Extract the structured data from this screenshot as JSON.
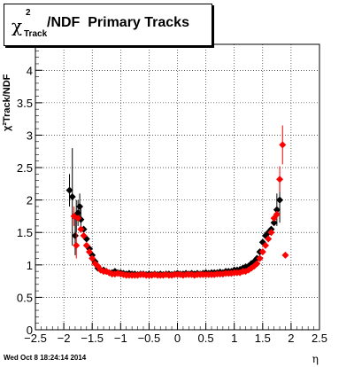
{
  "title": {
    "symbol": "χ",
    "sup": "2",
    "sub": "Track",
    "rest": "/NDF  Primary Tracks"
  },
  "axis_label_y": "χ²Track/NDF",
  "axis_label_x": "η",
  "footer": "Wed Oct  8 18:24:14 2014",
  "chart_data": {
    "type": "scatter",
    "xlim": [
      -2.5,
      2.5
    ],
    "ylim": [
      0,
      4.4
    ],
    "x_ticks": [
      "−2.5",
      "−2",
      "−1.5",
      "−1",
      "−0.5",
      "0",
      "0.5",
      "1",
      "1.5",
      "2",
      "2.5"
    ],
    "y_ticks": [
      "0",
      "0.5",
      "1",
      "1.5",
      "2",
      "2.5",
      "3",
      "3.5",
      "4"
    ],
    "grid": true,
    "series": [
      {
        "color": "#000000",
        "points": [
          [
            -1.9,
            2.15
          ],
          [
            -1.85,
            2.05
          ],
          [
            -1.8,
            1.45
          ],
          [
            -1.78,
            1.75
          ],
          [
            -1.75,
            1.8
          ],
          [
            -1.72,
            1.9
          ],
          [
            -1.7,
            1.7
          ],
          [
            -1.65,
            1.55
          ],
          [
            -1.6,
            1.4
          ],
          [
            -1.55,
            1.25
          ],
          [
            -1.5,
            1.15
          ],
          [
            -1.45,
            1.05
          ],
          [
            -1.4,
            0.95
          ],
          [
            -1.35,
            0.92
          ],
          [
            -1.3,
            0.92
          ],
          [
            -1.25,
            0.9
          ],
          [
            -1.2,
            0.88
          ],
          [
            -1.15,
            0.88
          ],
          [
            -1.1,
            0.9
          ],
          [
            -1.05,
            0.88
          ],
          [
            -1.0,
            0.88
          ],
          [
            -0.95,
            0.87
          ],
          [
            -0.9,
            0.86
          ],
          [
            -0.85,
            0.87
          ],
          [
            -0.8,
            0.86
          ],
          [
            -0.75,
            0.86
          ],
          [
            -0.7,
            0.85
          ],
          [
            -0.65,
            0.86
          ],
          [
            -0.6,
            0.86
          ],
          [
            -0.55,
            0.85
          ],
          [
            -0.5,
            0.86
          ],
          [
            -0.45,
            0.85
          ],
          [
            -0.4,
            0.86
          ],
          [
            -0.35,
            0.85
          ],
          [
            -0.3,
            0.86
          ],
          [
            -0.25,
            0.85
          ],
          [
            -0.2,
            0.86
          ],
          [
            -0.15,
            0.86
          ],
          [
            -0.1,
            0.85
          ],
          [
            -0.05,
            0.86
          ],
          [
            0.0,
            0.87
          ],
          [
            0.05,
            0.86
          ],
          [
            0.1,
            0.86
          ],
          [
            0.15,
            0.87
          ],
          [
            0.2,
            0.86
          ],
          [
            0.25,
            0.87
          ],
          [
            0.3,
            0.86
          ],
          [
            0.35,
            0.87
          ],
          [
            0.4,
            0.86
          ],
          [
            0.45,
            0.87
          ],
          [
            0.5,
            0.88
          ],
          [
            0.55,
            0.87
          ],
          [
            0.6,
            0.88
          ],
          [
            0.65,
            0.88
          ],
          [
            0.7,
            0.88
          ],
          [
            0.75,
            0.89
          ],
          [
            0.8,
            0.88
          ],
          [
            0.85,
            0.9
          ],
          [
            0.9,
            0.9
          ],
          [
            0.95,
            0.9
          ],
          [
            1.0,
            0.92
          ],
          [
            1.05,
            0.92
          ],
          [
            1.1,
            0.93
          ],
          [
            1.15,
            0.95
          ],
          [
            1.2,
            0.97
          ],
          [
            1.25,
            0.98
          ],
          [
            1.3,
            1.02
          ],
          [
            1.35,
            1.05
          ],
          [
            1.4,
            1.1
          ],
          [
            1.45,
            1.2
          ],
          [
            1.5,
            1.35
          ],
          [
            1.55,
            1.45
          ],
          [
            1.6,
            1.5
          ],
          [
            1.65,
            1.55
          ],
          [
            1.7,
            1.65
          ],
          [
            1.75,
            1.85
          ],
          [
            1.8,
            2.0
          ]
        ],
        "errors": [
          [
            -1.9,
            0.25
          ],
          [
            -1.85,
            0.75
          ],
          [
            -1.8,
            0.3
          ],
          [
            -1.78,
            0.25
          ],
          [
            -1.75,
            0.2
          ],
          [
            -1.72,
            0.2
          ],
          [
            -1.7,
            0.2
          ],
          [
            1.75,
            0.25
          ],
          [
            1.8,
            0.35
          ]
        ]
      },
      {
        "color": "#ff0000",
        "points": [
          [
            -1.82,
            1.75
          ],
          [
            -1.78,
            1.3
          ],
          [
            -1.75,
            1.72
          ],
          [
            -1.7,
            1.55
          ],
          [
            -1.65,
            1.45
          ],
          [
            -1.6,
            1.3
          ],
          [
            -1.55,
            1.2
          ],
          [
            -1.5,
            1.1
          ],
          [
            -1.45,
            1.02
          ],
          [
            -1.4,
            0.98
          ],
          [
            -1.35,
            0.92
          ],
          [
            -1.3,
            0.9
          ],
          [
            -1.25,
            0.9
          ],
          [
            -1.2,
            0.88
          ],
          [
            -1.15,
            0.86
          ],
          [
            -1.1,
            0.86
          ],
          [
            -1.05,
            0.87
          ],
          [
            -1.0,
            0.86
          ],
          [
            -0.95,
            0.85
          ],
          [
            -0.9,
            0.84
          ],
          [
            -0.85,
            0.84
          ],
          [
            -0.8,
            0.84
          ],
          [
            -0.75,
            0.84
          ],
          [
            -0.7,
            0.84
          ],
          [
            -0.65,
            0.85
          ],
          [
            -0.6,
            0.85
          ],
          [
            -0.55,
            0.84
          ],
          [
            -0.5,
            0.84
          ],
          [
            -0.45,
            0.84
          ],
          [
            -0.4,
            0.85
          ],
          [
            -0.35,
            0.84
          ],
          [
            -0.3,
            0.84
          ],
          [
            -0.25,
            0.84
          ],
          [
            -0.2,
            0.85
          ],
          [
            -0.15,
            0.84
          ],
          [
            -0.1,
            0.84
          ],
          [
            -0.05,
            0.85
          ],
          [
            0.0,
            0.85
          ],
          [
            0.05,
            0.85
          ],
          [
            0.1,
            0.84
          ],
          [
            0.15,
            0.85
          ],
          [
            0.2,
            0.85
          ],
          [
            0.25,
            0.85
          ],
          [
            0.3,
            0.84
          ],
          [
            0.35,
            0.85
          ],
          [
            0.4,
            0.85
          ],
          [
            0.45,
            0.85
          ],
          [
            0.5,
            0.85
          ],
          [
            0.55,
            0.85
          ],
          [
            0.6,
            0.85
          ],
          [
            0.65,
            0.85
          ],
          [
            0.7,
            0.86
          ],
          [
            0.75,
            0.86
          ],
          [
            0.8,
            0.86
          ],
          [
            0.85,
            0.87
          ],
          [
            0.9,
            0.87
          ],
          [
            0.95,
            0.87
          ],
          [
            1.0,
            0.88
          ],
          [
            1.05,
            0.88
          ],
          [
            1.1,
            0.88
          ],
          [
            1.15,
            0.9
          ],
          [
            1.2,
            0.9
          ],
          [
            1.25,
            0.92
          ],
          [
            1.3,
            0.95
          ],
          [
            1.35,
            0.98
          ],
          [
            1.4,
            1.02
          ],
          [
            1.45,
            1.1
          ],
          [
            1.5,
            1.2
          ],
          [
            1.55,
            1.3
          ],
          [
            1.6,
            1.4
          ],
          [
            1.65,
            1.5
          ],
          [
            1.7,
            1.72
          ],
          [
            1.75,
            1.78
          ],
          [
            1.8,
            2.32
          ],
          [
            1.85,
            2.85
          ],
          [
            1.9,
            1.15
          ]
        ],
        "errors": [
          [
            -1.82,
            0.15
          ],
          [
            -1.78,
            0.2
          ],
          [
            1.8,
            0.2
          ],
          [
            1.85,
            0.3
          ]
        ]
      }
    ]
  }
}
